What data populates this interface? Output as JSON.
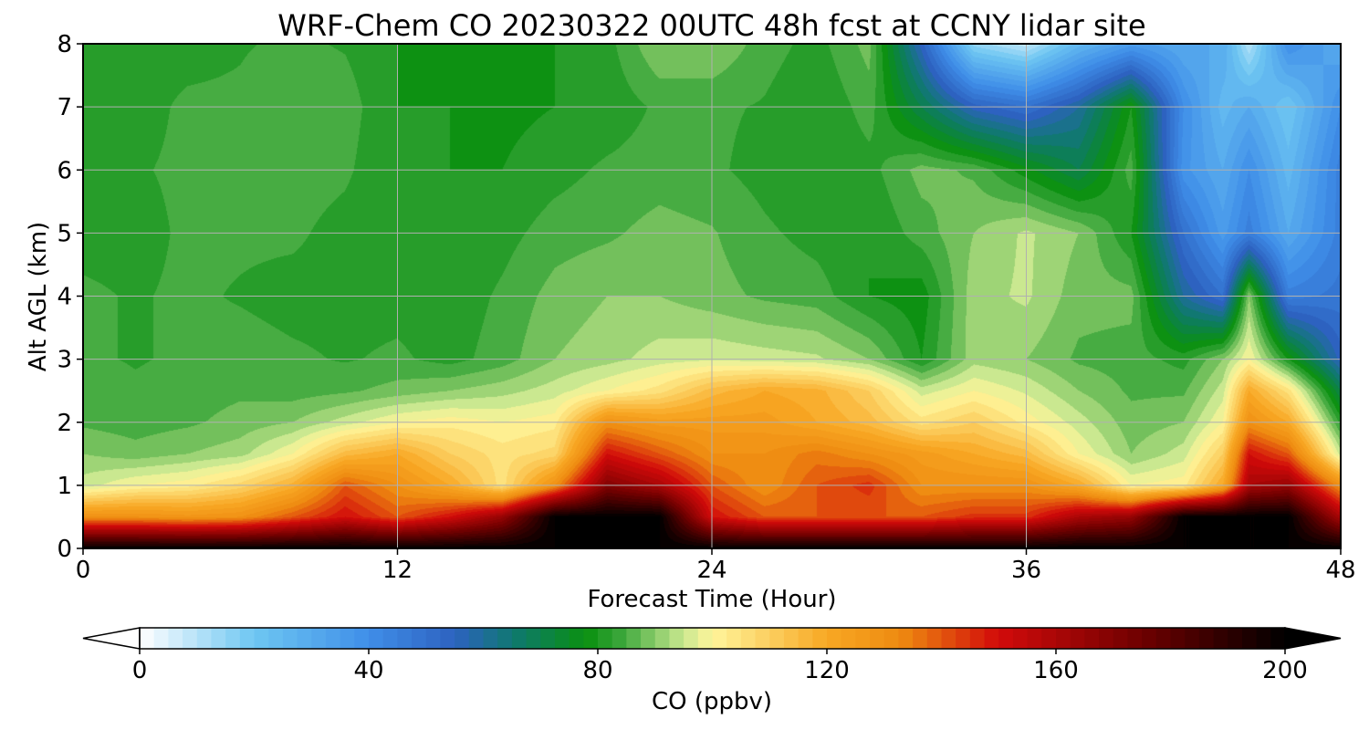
{
  "chart_data": {
    "type": "heatmap",
    "title": "WRF-Chem CO  20230322 00UTC 48h fcst at CCNY lidar site",
    "xlabel": "Forecast Time (Hour)",
    "ylabel": "Alt AGL (km)",
    "xlim": [
      0,
      48
    ],
    "ylim": [
      0,
      8
    ],
    "xticks": [
      0,
      12,
      24,
      36,
      48
    ],
    "yticks": [
      0,
      1,
      2,
      3,
      4,
      5,
      6,
      7,
      8
    ],
    "grid": true,
    "colorbar": {
      "label": "CO  (ppbv)",
      "range": [
        0,
        200
      ],
      "ticks": [
        0,
        40,
        80,
        120,
        160,
        200
      ],
      "extend": "both",
      "stops": [
        {
          "v": 0,
          "c": "#ffffff"
        },
        {
          "v": 20,
          "c": "#6ec6f2"
        },
        {
          "v": 40,
          "c": "#3f8ee8"
        },
        {
          "v": 55,
          "c": "#2d62c0"
        },
        {
          "v": 66,
          "c": "#0e7a6a"
        },
        {
          "v": 78,
          "c": "#0a9010"
        },
        {
          "v": 84,
          "c": "#3aa63a"
        },
        {
          "v": 95,
          "c": "#cae890"
        },
        {
          "v": 100,
          "c": "#fff59b"
        },
        {
          "v": 120,
          "c": "#f8a824"
        },
        {
          "v": 133,
          "c": "#ee8a10"
        },
        {
          "v": 150,
          "c": "#d20a0a"
        },
        {
          "v": 175,
          "c": "#6e0000"
        },
        {
          "v": 200,
          "c": "#000000"
        }
      ]
    },
    "x_hours": [
      0,
      2,
      4,
      6,
      8,
      10,
      12,
      14,
      16,
      18,
      20,
      22,
      24,
      26,
      28,
      30,
      32,
      34,
      36,
      38,
      40,
      42,
      43.5,
      44.5,
      46,
      48
    ],
    "altitudes_km": [
      0,
      0.5,
      1,
      1.5,
      2,
      2.5,
      3,
      4,
      5,
      6,
      7,
      8
    ],
    "values_ppbv": [
      [
        200,
        200,
        200,
        200,
        200,
        200,
        200,
        200,
        200,
        200,
        200,
        200,
        200,
        200,
        200,
        200,
        200,
        200,
        200,
        200,
        200,
        200,
        200,
        200,
        200,
        200
      ],
      [
        130,
        130,
        128,
        130,
        140,
        150,
        140,
        150,
        165,
        200,
        200,
        200,
        150,
        140,
        140,
        140,
        140,
        145,
        145,
        160,
        165,
        200,
        200,
        200,
        200,
        160
      ],
      [
        95,
        100,
        102,
        108,
        118,
        140,
        130,
        120,
        105,
        130,
        170,
        160,
        140,
        130,
        140,
        145,
        130,
        130,
        130,
        120,
        100,
        102,
        120,
        160,
        165,
        130
      ],
      [
        90,
        88,
        90,
        92,
        100,
        115,
        120,
        110,
        105,
        108,
        150,
        140,
        130,
        130,
        135,
        130,
        125,
        120,
        115,
        100,
        90,
        95,
        110,
        150,
        140,
        95
      ],
      [
        86,
        85,
        86,
        88,
        90,
        95,
        100,
        102,
        100,
        102,
        130,
        125,
        125,
        125,
        120,
        115,
        105,
        110,
        102,
        95,
        88,
        90,
        100,
        130,
        120,
        82
      ],
      [
        86,
        84,
        85,
        86,
        85,
        86,
        88,
        90,
        92,
        95,
        100,
        105,
        115,
        120,
        118,
        110,
        95,
        100,
        96,
        90,
        86,
        86,
        95,
        120,
        105,
        70
      ],
      [
        84,
        83,
        84,
        85,
        84,
        83,
        84,
        82,
        85,
        90,
        92,
        95,
        96,
        95,
        94,
        90,
        80,
        92,
        90,
        86,
        85,
        82,
        90,
        100,
        80,
        55
      ],
      [
        84,
        83,
        84,
        83,
        82,
        82,
        82,
        81,
        84,
        88,
        90,
        90,
        88,
        86,
        85,
        80,
        78,
        92,
        94,
        88,
        88,
        60,
        50,
        90,
        45,
        48
      ],
      [
        82,
        82,
        84,
        84,
        84,
        82,
        80,
        80,
        82,
        85,
        86,
        88,
        87,
        84,
        82,
        80,
        85,
        90,
        94,
        90,
        80,
        50,
        35,
        45,
        30,
        45
      ],
      [
        82,
        83,
        84,
        84,
        85,
        84,
        80,
        80,
        80,
        82,
        84,
        85,
        84,
        82,
        80,
        82,
        88,
        86,
        78,
        70,
        85,
        38,
        30,
        40,
        25,
        45
      ],
      [
        80,
        82,
        84,
        84,
        86,
        85,
        80,
        80,
        79,
        80,
        81,
        84,
        84,
        83,
        80,
        85,
        70,
        55,
        50,
        60,
        80,
        40,
        25,
        30,
        20,
        40
      ],
      [
        80,
        82,
        82,
        83,
        84,
        83,
        80,
        79,
        78,
        80,
        82,
        90,
        90,
        85,
        82,
        88,
        55,
        15,
        8,
        25,
        35,
        30,
        30,
        10,
        40,
        30
      ]
    ]
  }
}
